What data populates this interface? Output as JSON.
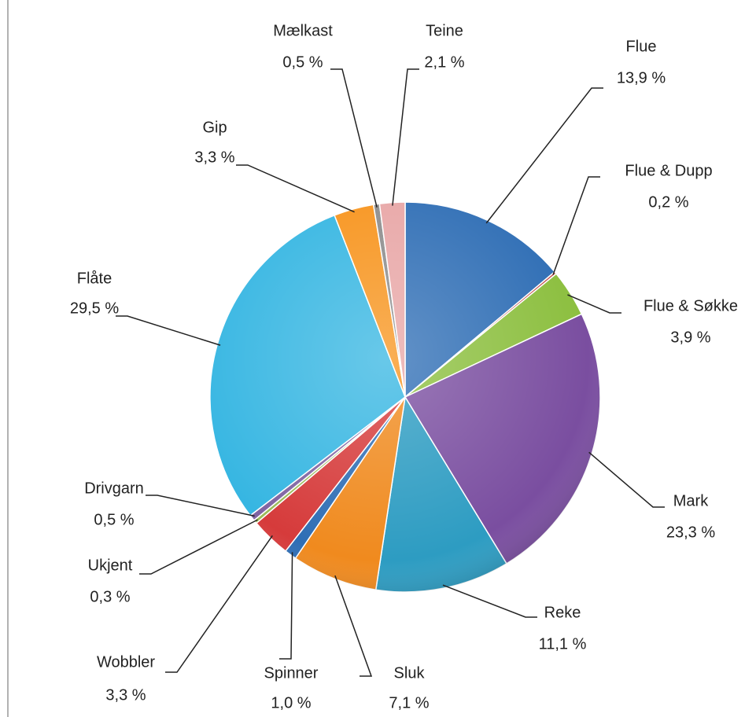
{
  "chart_data": {
    "type": "pie",
    "categories": [
      "Flue",
      "Flue & Dupp",
      "Flue & Søkke",
      "Mark",
      "Reke",
      "Sluk",
      "Spinner",
      "Wobbler",
      "Ukjent",
      "Drivgarn",
      "Flåte",
      "Gip",
      "Mælkast",
      "Teine"
    ],
    "values": [
      13.9,
      0.2,
      3.9,
      23.3,
      11.1,
      7.1,
      1.0,
      3.3,
      0.3,
      0.5,
      29.5,
      3.3,
      0.5,
      2.1
    ],
    "value_labels": [
      "13,9 %",
      "0,2 %",
      "3,9 %",
      "23,3 %",
      "11,1 %",
      "7,1 %",
      "1,0 %",
      "3,3 %",
      "0,3 %",
      "0,5 %",
      "29,5 %",
      "3,3 %",
      "0,5 %",
      "2,1 %"
    ],
    "colors": [
      "#2f6eb5",
      "#c0504d",
      "#8cbf3f",
      "#7a4ea0",
      "#2d9cc2",
      "#f08a1e",
      "#2f6eb5",
      "#d63b3b",
      "#9bbb59",
      "#8064a2",
      "#36b6e2",
      "#f7941d",
      "#8c8c8c",
      "#e8a6a6"
    ]
  }
}
